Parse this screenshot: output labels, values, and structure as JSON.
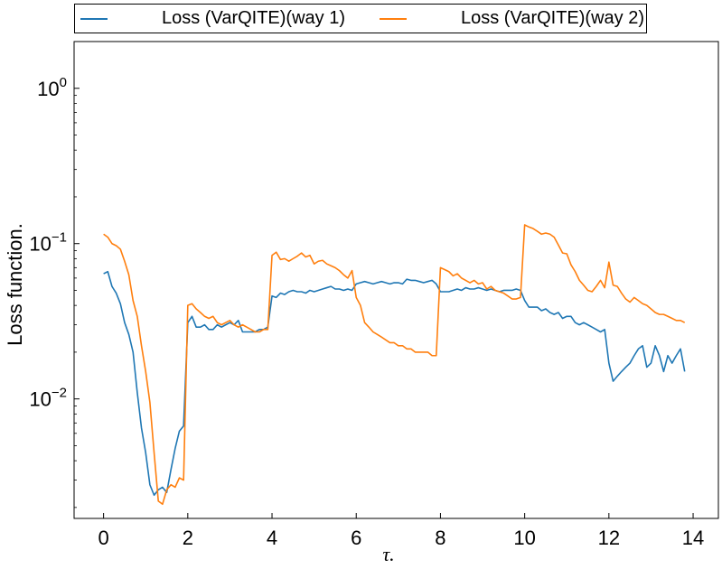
{
  "chart_data": {
    "type": "line",
    "xlabel": "τ.",
    "ylabel": "Loss function.",
    "xlim": [
      -0.7,
      14.6
    ],
    "ylim": [
      0.0017,
      2.0
    ],
    "yscale": "log",
    "xticks": [
      0,
      2,
      4,
      6,
      8,
      10,
      12,
      14
    ],
    "x_tick_labels": [
      "0",
      "2",
      "4",
      "6",
      "8",
      "10",
      "12",
      "14"
    ],
    "yticks": [
      0.01,
      0.1,
      1
    ],
    "y_tick_labels": [
      {
        "base": "10",
        "exp": "−2"
      },
      {
        "base": "10",
        "exp": "−1"
      },
      {
        "base": "10",
        "exp": "0"
      }
    ],
    "grid": false,
    "legend_position": "top",
    "series": [
      {
        "name": "Loss (VarQITE)(way 1)",
        "color": "#1f77b4",
        "points": [
          [
            0.0,
            0.064
          ],
          [
            0.1,
            0.066
          ],
          [
            0.2,
            0.053
          ],
          [
            0.3,
            0.048
          ],
          [
            0.4,
            0.041
          ],
          [
            0.5,
            0.031
          ],
          [
            0.6,
            0.026
          ],
          [
            0.7,
            0.02
          ],
          [
            0.8,
            0.011
          ],
          [
            0.9,
            0.0065
          ],
          [
            1.0,
            0.0045
          ],
          [
            1.1,
            0.0028
          ],
          [
            1.2,
            0.0024
          ],
          [
            1.3,
            0.0026
          ],
          [
            1.4,
            0.0027
          ],
          [
            1.5,
            0.0025
          ],
          [
            1.6,
            0.0035
          ],
          [
            1.7,
            0.0048
          ],
          [
            1.8,
            0.0062
          ],
          [
            1.9,
            0.0067
          ],
          [
            2.0,
            0.031
          ],
          [
            2.1,
            0.034
          ],
          [
            2.2,
            0.029
          ],
          [
            2.3,
            0.029
          ],
          [
            2.4,
            0.03
          ],
          [
            2.5,
            0.028
          ],
          [
            2.6,
            0.028
          ],
          [
            2.7,
            0.03
          ],
          [
            2.8,
            0.029
          ],
          [
            2.9,
            0.03
          ],
          [
            3.0,
            0.031
          ],
          [
            3.1,
            0.03
          ],
          [
            3.2,
            0.032
          ],
          [
            3.3,
            0.027
          ],
          [
            3.4,
            0.027
          ],
          [
            3.5,
            0.027
          ],
          [
            3.6,
            0.027
          ],
          [
            3.7,
            0.028
          ],
          [
            3.8,
            0.028
          ],
          [
            3.9,
            0.029
          ],
          [
            4.0,
            0.046
          ],
          [
            4.1,
            0.045
          ],
          [
            4.2,
            0.048
          ],
          [
            4.3,
            0.047
          ],
          [
            4.4,
            0.049
          ],
          [
            4.5,
            0.05
          ],
          [
            4.6,
            0.049
          ],
          [
            4.7,
            0.049
          ],
          [
            4.8,
            0.048
          ],
          [
            4.9,
            0.05
          ],
          [
            5.0,
            0.049
          ],
          [
            5.1,
            0.05
          ],
          [
            5.2,
            0.051
          ],
          [
            5.3,
            0.052
          ],
          [
            5.4,
            0.053
          ],
          [
            5.5,
            0.051
          ],
          [
            5.6,
            0.051
          ],
          [
            5.7,
            0.05
          ],
          [
            5.8,
            0.051
          ],
          [
            5.9,
            0.05
          ],
          [
            6.0,
            0.055
          ],
          [
            6.1,
            0.056
          ],
          [
            6.2,
            0.057
          ],
          [
            6.3,
            0.056
          ],
          [
            6.4,
            0.055
          ],
          [
            6.5,
            0.056
          ],
          [
            6.6,
            0.057
          ],
          [
            6.7,
            0.056
          ],
          [
            6.8,
            0.055
          ],
          [
            6.9,
            0.056
          ],
          [
            7.0,
            0.056
          ],
          [
            7.1,
            0.055
          ],
          [
            7.2,
            0.059
          ],
          [
            7.3,
            0.058
          ],
          [
            7.4,
            0.058
          ],
          [
            7.5,
            0.057
          ],
          [
            7.6,
            0.056
          ],
          [
            7.7,
            0.057
          ],
          [
            7.8,
            0.058
          ],
          [
            7.9,
            0.055
          ],
          [
            8.0,
            0.049
          ],
          [
            8.1,
            0.049
          ],
          [
            8.2,
            0.049
          ],
          [
            8.3,
            0.05
          ],
          [
            8.4,
            0.051
          ],
          [
            8.5,
            0.05
          ],
          [
            8.6,
            0.052
          ],
          [
            8.7,
            0.051
          ],
          [
            8.8,
            0.051
          ],
          [
            8.9,
            0.052
          ],
          [
            9.0,
            0.051
          ],
          [
            9.1,
            0.05
          ],
          [
            9.2,
            0.051
          ],
          [
            9.3,
            0.05
          ],
          [
            9.4,
            0.049
          ],
          [
            9.5,
            0.05
          ],
          [
            9.6,
            0.05
          ],
          [
            9.7,
            0.05
          ],
          [
            9.8,
            0.051
          ],
          [
            9.9,
            0.05
          ],
          [
            10.0,
            0.043
          ],
          [
            10.1,
            0.039
          ],
          [
            10.2,
            0.039
          ],
          [
            10.3,
            0.039
          ],
          [
            10.4,
            0.037
          ],
          [
            10.5,
            0.038
          ],
          [
            10.6,
            0.036
          ],
          [
            10.7,
            0.035
          ],
          [
            10.8,
            0.036
          ],
          [
            10.9,
            0.033
          ],
          [
            11.0,
            0.034
          ],
          [
            11.1,
            0.034
          ],
          [
            11.2,
            0.031
          ],
          [
            11.3,
            0.03
          ],
          [
            11.4,
            0.031
          ],
          [
            11.5,
            0.03
          ],
          [
            11.6,
            0.029
          ],
          [
            11.7,
            0.028
          ],
          [
            11.8,
            0.027
          ],
          [
            11.9,
            0.028
          ],
          [
            12.0,
            0.017
          ],
          [
            12.1,
            0.013
          ],
          [
            12.2,
            0.014
          ],
          [
            12.3,
            0.015
          ],
          [
            12.4,
            0.016
          ],
          [
            12.5,
            0.017
          ],
          [
            12.6,
            0.019
          ],
          [
            12.7,
            0.021
          ],
          [
            12.8,
            0.022
          ],
          [
            12.9,
            0.016
          ],
          [
            13.0,
            0.017
          ],
          [
            13.1,
            0.022
          ],
          [
            13.2,
            0.019
          ],
          [
            13.3,
            0.015
          ],
          [
            13.4,
            0.019
          ],
          [
            13.5,
            0.017
          ],
          [
            13.6,
            0.019
          ],
          [
            13.7,
            0.021
          ],
          [
            13.8,
            0.015
          ]
        ]
      },
      {
        "name": "Loss (VarQITE)(way 2)",
        "color": "#ff7f0e",
        "points": [
          [
            0.0,
            0.115
          ],
          [
            0.1,
            0.11
          ],
          [
            0.2,
            0.1
          ],
          [
            0.3,
            0.097
          ],
          [
            0.4,
            0.092
          ],
          [
            0.5,
            0.077
          ],
          [
            0.6,
            0.063
          ],
          [
            0.7,
            0.043
          ],
          [
            0.8,
            0.034
          ],
          [
            0.9,
            0.022
          ],
          [
            1.0,
            0.015
          ],
          [
            1.1,
            0.0095
          ],
          [
            1.2,
            0.0045
          ],
          [
            1.3,
            0.0022
          ],
          [
            1.4,
            0.0021
          ],
          [
            1.5,
            0.0026
          ],
          [
            1.6,
            0.0028
          ],
          [
            1.7,
            0.0027
          ],
          [
            1.8,
            0.0031
          ],
          [
            1.9,
            0.003
          ],
          [
            2.0,
            0.04
          ],
          [
            2.1,
            0.041
          ],
          [
            2.2,
            0.038
          ],
          [
            2.3,
            0.036
          ],
          [
            2.4,
            0.034
          ],
          [
            2.5,
            0.033
          ],
          [
            2.6,
            0.034
          ],
          [
            2.7,
            0.031
          ],
          [
            2.8,
            0.03
          ],
          [
            2.9,
            0.031
          ],
          [
            3.0,
            0.032
          ],
          [
            3.1,
            0.03
          ],
          [
            3.2,
            0.029
          ],
          [
            3.3,
            0.03
          ],
          [
            3.4,
            0.029
          ],
          [
            3.5,
            0.028
          ],
          [
            3.6,
            0.027
          ],
          [
            3.7,
            0.027
          ],
          [
            3.8,
            0.028
          ],
          [
            3.9,
            0.028
          ],
          [
            4.0,
            0.084
          ],
          [
            4.1,
            0.088
          ],
          [
            4.2,
            0.079
          ],
          [
            4.3,
            0.08
          ],
          [
            4.4,
            0.077
          ],
          [
            4.5,
            0.08
          ],
          [
            4.6,
            0.083
          ],
          [
            4.7,
            0.087
          ],
          [
            4.8,
            0.082
          ],
          [
            4.9,
            0.084
          ],
          [
            5.0,
            0.074
          ],
          [
            5.1,
            0.077
          ],
          [
            5.2,
            0.078
          ],
          [
            5.3,
            0.074
          ],
          [
            5.4,
            0.072
          ],
          [
            5.5,
            0.07
          ],
          [
            5.6,
            0.067
          ],
          [
            5.7,
            0.063
          ],
          [
            5.8,
            0.06
          ],
          [
            5.9,
            0.067
          ],
          [
            6.0,
            0.045
          ],
          [
            6.1,
            0.04
          ],
          [
            6.2,
            0.031
          ],
          [
            6.3,
            0.029
          ],
          [
            6.4,
            0.027
          ],
          [
            6.5,
            0.026
          ],
          [
            6.6,
            0.025
          ],
          [
            6.7,
            0.024
          ],
          [
            6.8,
            0.023
          ],
          [
            6.9,
            0.023
          ],
          [
            7.0,
            0.022
          ],
          [
            7.1,
            0.022
          ],
          [
            7.2,
            0.021
          ],
          [
            7.3,
            0.021
          ],
          [
            7.4,
            0.02
          ],
          [
            7.5,
            0.02
          ],
          [
            7.6,
            0.02
          ],
          [
            7.7,
            0.02
          ],
          [
            7.8,
            0.019
          ],
          [
            7.9,
            0.019
          ],
          [
            8.0,
            0.07
          ],
          [
            8.1,
            0.068
          ],
          [
            8.2,
            0.066
          ],
          [
            8.3,
            0.062
          ],
          [
            8.4,
            0.064
          ],
          [
            8.5,
            0.06
          ],
          [
            8.6,
            0.058
          ],
          [
            8.7,
            0.056
          ],
          [
            8.8,
            0.058
          ],
          [
            8.9,
            0.055
          ],
          [
            9.0,
            0.056
          ],
          [
            9.1,
            0.051
          ],
          [
            9.2,
            0.053
          ],
          [
            9.3,
            0.05
          ],
          [
            9.4,
            0.049
          ],
          [
            9.5,
            0.048
          ],
          [
            9.6,
            0.046
          ],
          [
            9.7,
            0.044
          ],
          [
            9.8,
            0.044
          ],
          [
            9.9,
            0.045
          ],
          [
            10.0,
            0.132
          ],
          [
            10.1,
            0.128
          ],
          [
            10.2,
            0.125
          ],
          [
            10.3,
            0.12
          ],
          [
            10.4,
            0.115
          ],
          [
            10.5,
            0.117
          ],
          [
            10.6,
            0.115
          ],
          [
            10.7,
            0.11
          ],
          [
            10.8,
            0.098
          ],
          [
            10.9,
            0.087
          ],
          [
            11.0,
            0.086
          ],
          [
            11.1,
            0.073
          ],
          [
            11.2,
            0.066
          ],
          [
            11.3,
            0.058
          ],
          [
            11.4,
            0.054
          ],
          [
            11.5,
            0.05
          ],
          [
            11.6,
            0.049
          ],
          [
            11.7,
            0.053
          ],
          [
            11.8,
            0.058
          ],
          [
            11.9,
            0.052
          ],
          [
            12.0,
            0.076
          ],
          [
            12.1,
            0.054
          ],
          [
            12.2,
            0.053
          ],
          [
            12.3,
            0.048
          ],
          [
            12.4,
            0.044
          ],
          [
            12.5,
            0.042
          ],
          [
            12.6,
            0.045
          ],
          [
            12.7,
            0.043
          ],
          [
            12.8,
            0.041
          ],
          [
            12.9,
            0.04
          ],
          [
            13.0,
            0.038
          ],
          [
            13.1,
            0.036
          ],
          [
            13.2,
            0.035
          ],
          [
            13.3,
            0.035
          ],
          [
            13.4,
            0.034
          ],
          [
            13.5,
            0.033
          ],
          [
            13.6,
            0.032
          ],
          [
            13.7,
            0.032
          ],
          [
            13.8,
            0.031
          ]
        ]
      }
    ]
  }
}
